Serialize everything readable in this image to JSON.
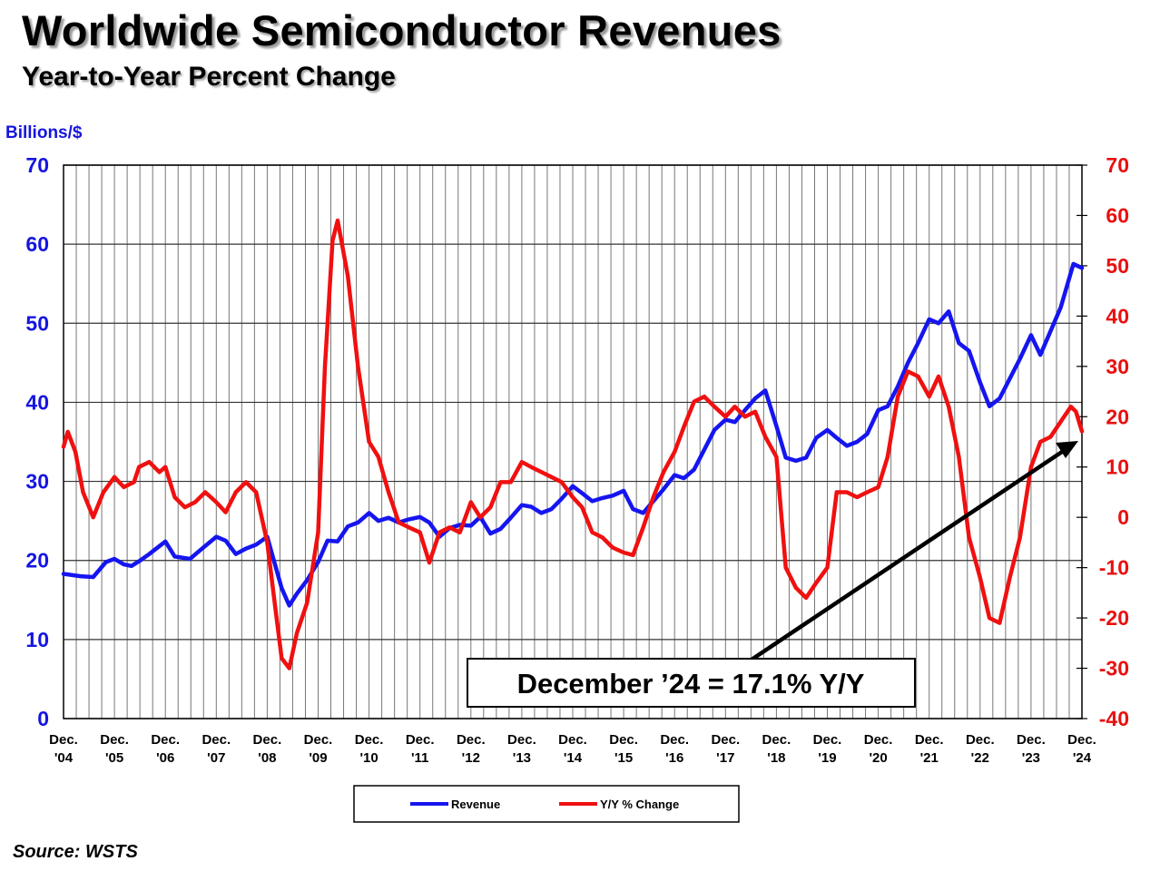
{
  "header": {
    "title": "Worldwide Semiconductor Revenues",
    "subtitle": "Year-to-Year Percent Change"
  },
  "footer": {
    "source": "Source: WSTS"
  },
  "annotation": {
    "text": "December ’24 = 17.1% Y/Y"
  },
  "colors": {
    "revenue": "#1515f0",
    "yoy": "#f01010",
    "left_axis": "#1515e0",
    "right_axis": "#e81010"
  },
  "chart_data": {
    "type": "line",
    "ylabel": "Billions/$",
    "ylim": [
      0,
      70
    ],
    "y_ticks": [
      "0",
      "10",
      "20",
      "30",
      "40",
      "50",
      "60",
      "70"
    ],
    "y2lim": [
      -40,
      70
    ],
    "y2_ticks": [
      "-40",
      "-30",
      "-20",
      "-10",
      "0",
      "10",
      "20",
      "30",
      "40",
      "50",
      "60",
      "70"
    ],
    "x_range": [
      2004.917,
      2024.917
    ],
    "x_ticks": [
      {
        "x": 2004.917,
        "top": "Dec.",
        "bottom": "'04"
      },
      {
        "x": 2005.917,
        "top": "Dec.",
        "bottom": "'05"
      },
      {
        "x": 2006.917,
        "top": "Dec.",
        "bottom": "'06"
      },
      {
        "x": 2007.917,
        "top": "Dec.",
        "bottom": "'07"
      },
      {
        "x": 2008.917,
        "top": "Dec.",
        "bottom": "'08"
      },
      {
        "x": 2009.917,
        "top": "Dec.",
        "bottom": "'09"
      },
      {
        "x": 2010.917,
        "top": "Dec.",
        "bottom": "'10"
      },
      {
        "x": 2011.917,
        "top": "Dec.",
        "bottom": "'11"
      },
      {
        "x": 2012.917,
        "top": "Dec.",
        "bottom": "'12"
      },
      {
        "x": 2013.917,
        "top": "Dec.",
        "bottom": "'13"
      },
      {
        "x": 2014.917,
        "top": "Dec.",
        "bottom": "'14"
      },
      {
        "x": 2015.917,
        "top": "Dec.",
        "bottom": "'15"
      },
      {
        "x": 2016.917,
        "top": "Dec.",
        "bottom": "'16"
      },
      {
        "x": 2017.917,
        "top": "Dec.",
        "bottom": "'17"
      },
      {
        "x": 2018.917,
        "top": "Dec.",
        "bottom": "'18"
      },
      {
        "x": 2019.917,
        "top": "Dec.",
        "bottom": "'19"
      },
      {
        "x": 2020.917,
        "top": "Dec.",
        "bottom": "'20"
      },
      {
        "x": 2021.917,
        "top": "Dec.",
        "bottom": "'21"
      },
      {
        "x": 2022.917,
        "top": "Dec.",
        "bottom": "'22"
      },
      {
        "x": 2023.917,
        "top": "Dec.",
        "bottom": "'23"
      },
      {
        "x": 2024.917,
        "top": "Dec.",
        "bottom": "'24"
      }
    ],
    "grid": true,
    "legend_position": "bottom-center",
    "series": [
      {
        "name": "Revenue",
        "axis": "left",
        "points": [
          [
            2004.917,
            18.3
          ],
          [
            2005.25,
            18.0
          ],
          [
            2005.5,
            17.9
          ],
          [
            2005.75,
            19.8
          ],
          [
            2005.917,
            20.2
          ],
          [
            2006.1,
            19.5
          ],
          [
            2006.25,
            19.3
          ],
          [
            2006.4,
            19.9
          ],
          [
            2006.6,
            20.8
          ],
          [
            2006.917,
            22.4
          ],
          [
            2007.1,
            20.5
          ],
          [
            2007.4,
            20.2
          ],
          [
            2007.6,
            21.3
          ],
          [
            2007.917,
            23.0
          ],
          [
            2008.1,
            22.5
          ],
          [
            2008.3,
            20.8
          ],
          [
            2008.5,
            21.5
          ],
          [
            2008.7,
            22.0
          ],
          [
            2008.917,
            23.0
          ],
          [
            2009.2,
            16.5
          ],
          [
            2009.35,
            14.3
          ],
          [
            2009.5,
            15.8
          ],
          [
            2009.7,
            17.5
          ],
          [
            2009.917,
            19.8
          ],
          [
            2010.1,
            22.5
          ],
          [
            2010.3,
            22.4
          ],
          [
            2010.5,
            24.3
          ],
          [
            2010.7,
            24.8
          ],
          [
            2010.917,
            26.0
          ],
          [
            2011.1,
            25.0
          ],
          [
            2011.3,
            25.4
          ],
          [
            2011.5,
            24.8
          ],
          [
            2011.7,
            25.2
          ],
          [
            2011.917,
            25.5
          ],
          [
            2012.1,
            24.8
          ],
          [
            2012.3,
            23.0
          ],
          [
            2012.5,
            24.1
          ],
          [
            2012.7,
            24.5
          ],
          [
            2012.917,
            24.4
          ],
          [
            2013.1,
            25.5
          ],
          [
            2013.3,
            23.4
          ],
          [
            2013.5,
            24.0
          ],
          [
            2013.7,
            25.4
          ],
          [
            2013.917,
            27.0
          ],
          [
            2014.1,
            26.8
          ],
          [
            2014.3,
            26.0
          ],
          [
            2014.5,
            26.5
          ],
          [
            2014.7,
            27.8
          ],
          [
            2014.917,
            29.4
          ],
          [
            2015.1,
            28.5
          ],
          [
            2015.3,
            27.5
          ],
          [
            2015.5,
            27.9
          ],
          [
            2015.7,
            28.2
          ],
          [
            2015.917,
            28.8
          ],
          [
            2016.1,
            26.5
          ],
          [
            2016.3,
            26.0
          ],
          [
            2016.5,
            27.5
          ],
          [
            2016.7,
            29.0
          ],
          [
            2016.917,
            30.8
          ],
          [
            2017.1,
            30.4
          ],
          [
            2017.3,
            31.5
          ],
          [
            2017.5,
            34.0
          ],
          [
            2017.7,
            36.5
          ],
          [
            2017.917,
            37.8
          ],
          [
            2018.1,
            37.5
          ],
          [
            2018.3,
            39.0
          ],
          [
            2018.5,
            40.5
          ],
          [
            2018.7,
            41.5
          ],
          [
            2018.917,
            37.0
          ],
          [
            2019.1,
            33.0
          ],
          [
            2019.3,
            32.6
          ],
          [
            2019.5,
            33.0
          ],
          [
            2019.7,
            35.5
          ],
          [
            2019.917,
            36.5
          ],
          [
            2020.1,
            35.5
          ],
          [
            2020.3,
            34.5
          ],
          [
            2020.5,
            35.0
          ],
          [
            2020.7,
            36.0
          ],
          [
            2020.917,
            39.0
          ],
          [
            2021.1,
            39.5
          ],
          [
            2021.3,
            42.0
          ],
          [
            2021.5,
            45.0
          ],
          [
            2021.7,
            47.5
          ],
          [
            2021.917,
            50.5
          ],
          [
            2022.1,
            50.0
          ],
          [
            2022.3,
            51.5
          ],
          [
            2022.5,
            47.5
          ],
          [
            2022.7,
            46.5
          ],
          [
            2022.917,
            42.5
          ],
          [
            2023.1,
            39.5
          ],
          [
            2023.3,
            40.5
          ],
          [
            2023.5,
            43.0
          ],
          [
            2023.7,
            45.5
          ],
          [
            2023.917,
            48.5
          ],
          [
            2024.1,
            46.0
          ],
          [
            2024.3,
            49.0
          ],
          [
            2024.5,
            52.0
          ],
          [
            2024.75,
            57.5
          ],
          [
            2024.917,
            57.0
          ]
        ]
      },
      {
        "name": "Y/Y % Change",
        "axis": "right",
        "points": [
          [
            2004.917,
            14.0
          ],
          [
            2005.0,
            17.0
          ],
          [
            2005.15,
            13.0
          ],
          [
            2005.3,
            5.0
          ],
          [
            2005.5,
            0.0
          ],
          [
            2005.7,
            5.0
          ],
          [
            2005.917,
            8.0
          ],
          [
            2006.1,
            6.0
          ],
          [
            2006.3,
            7.0
          ],
          [
            2006.4,
            10.0
          ],
          [
            2006.6,
            11.0
          ],
          [
            2006.8,
            9.0
          ],
          [
            2006.917,
            10.0
          ],
          [
            2007.1,
            4.0
          ],
          [
            2007.3,
            2.0
          ],
          [
            2007.5,
            3.0
          ],
          [
            2007.7,
            5.0
          ],
          [
            2007.917,
            3.0
          ],
          [
            2008.1,
            1.0
          ],
          [
            2008.3,
            5.0
          ],
          [
            2008.5,
            7.0
          ],
          [
            2008.7,
            5.0
          ],
          [
            2008.917,
            -5.0
          ],
          [
            2009.1,
            -20.0
          ],
          [
            2009.2,
            -28.0
          ],
          [
            2009.35,
            -30.0
          ],
          [
            2009.5,
            -23.0
          ],
          [
            2009.7,
            -17.0
          ],
          [
            2009.917,
            -3.0
          ],
          [
            2010.05,
            30.0
          ],
          [
            2010.2,
            55.0
          ],
          [
            2010.3,
            59.0
          ],
          [
            2010.5,
            48.0
          ],
          [
            2010.7,
            30.0
          ],
          [
            2010.917,
            15.0
          ],
          [
            2011.1,
            12.0
          ],
          [
            2011.3,
            5.0
          ],
          [
            2011.5,
            -1.0
          ],
          [
            2011.7,
            -2.0
          ],
          [
            2011.917,
            -3.0
          ],
          [
            2012.1,
            -9.0
          ],
          [
            2012.3,
            -3.0
          ],
          [
            2012.5,
            -2.0
          ],
          [
            2012.7,
            -3.0
          ],
          [
            2012.917,
            3.0
          ],
          [
            2013.1,
            0.0
          ],
          [
            2013.3,
            2.0
          ],
          [
            2013.5,
            7.0
          ],
          [
            2013.7,
            7.0
          ],
          [
            2013.917,
            11.0
          ],
          [
            2014.1,
            10.0
          ],
          [
            2014.3,
            9.0
          ],
          [
            2014.5,
            8.0
          ],
          [
            2014.7,
            7.0
          ],
          [
            2014.917,
            4.0
          ],
          [
            2015.1,
            2.0
          ],
          [
            2015.3,
            -3.0
          ],
          [
            2015.5,
            -4.0
          ],
          [
            2015.7,
            -6.0
          ],
          [
            2015.917,
            -7.0
          ],
          [
            2016.1,
            -7.5
          ],
          [
            2016.3,
            -2.0
          ],
          [
            2016.5,
            4.0
          ],
          [
            2016.7,
            9.0
          ],
          [
            2016.917,
            13.0
          ],
          [
            2017.1,
            18.0
          ],
          [
            2017.3,
            23.0
          ],
          [
            2017.5,
            24.0
          ],
          [
            2017.7,
            22.0
          ],
          [
            2017.917,
            20.0
          ],
          [
            2018.1,
            22.0
          ],
          [
            2018.3,
            20.0
          ],
          [
            2018.5,
            21.0
          ],
          [
            2018.7,
            16.0
          ],
          [
            2018.917,
            12.0
          ],
          [
            2019.1,
            -10.0
          ],
          [
            2019.3,
            -14.0
          ],
          [
            2019.5,
            -16.0
          ],
          [
            2019.7,
            -13.0
          ],
          [
            2019.917,
            -10.0
          ],
          [
            2020.1,
            5.0
          ],
          [
            2020.3,
            5.0
          ],
          [
            2020.5,
            4.0
          ],
          [
            2020.7,
            5.0
          ],
          [
            2020.917,
            6.0
          ],
          [
            2021.1,
            12.0
          ],
          [
            2021.3,
            24.0
          ],
          [
            2021.5,
            29.0
          ],
          [
            2021.7,
            28.0
          ],
          [
            2021.917,
            24.0
          ],
          [
            2022.1,
            28.0
          ],
          [
            2022.3,
            22.0
          ],
          [
            2022.5,
            12.0
          ],
          [
            2022.7,
            -4.0
          ],
          [
            2022.917,
            -12.0
          ],
          [
            2023.1,
            -20.0
          ],
          [
            2023.3,
            -21.0
          ],
          [
            2023.5,
            -12.0
          ],
          [
            2023.7,
            -4.0
          ],
          [
            2023.917,
            10.0
          ],
          [
            2024.1,
            15.0
          ],
          [
            2024.3,
            16.0
          ],
          [
            2024.5,
            19.0
          ],
          [
            2024.7,
            22.0
          ],
          [
            2024.8,
            21.0
          ],
          [
            2024.917,
            17.1
          ]
        ]
      }
    ]
  }
}
